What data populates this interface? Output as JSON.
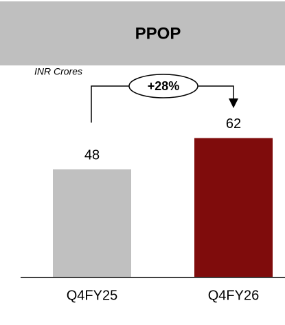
{
  "chart_data": {
    "type": "bar",
    "title": "PPOP",
    "subtitle": "INR Crores",
    "annotation": "+28%",
    "categories": [
      "Q4FY25",
      "Q4FY26"
    ],
    "values": [
      48,
      62
    ],
    "colors": [
      "#c0c0c0",
      "#7f0c0c"
    ]
  }
}
